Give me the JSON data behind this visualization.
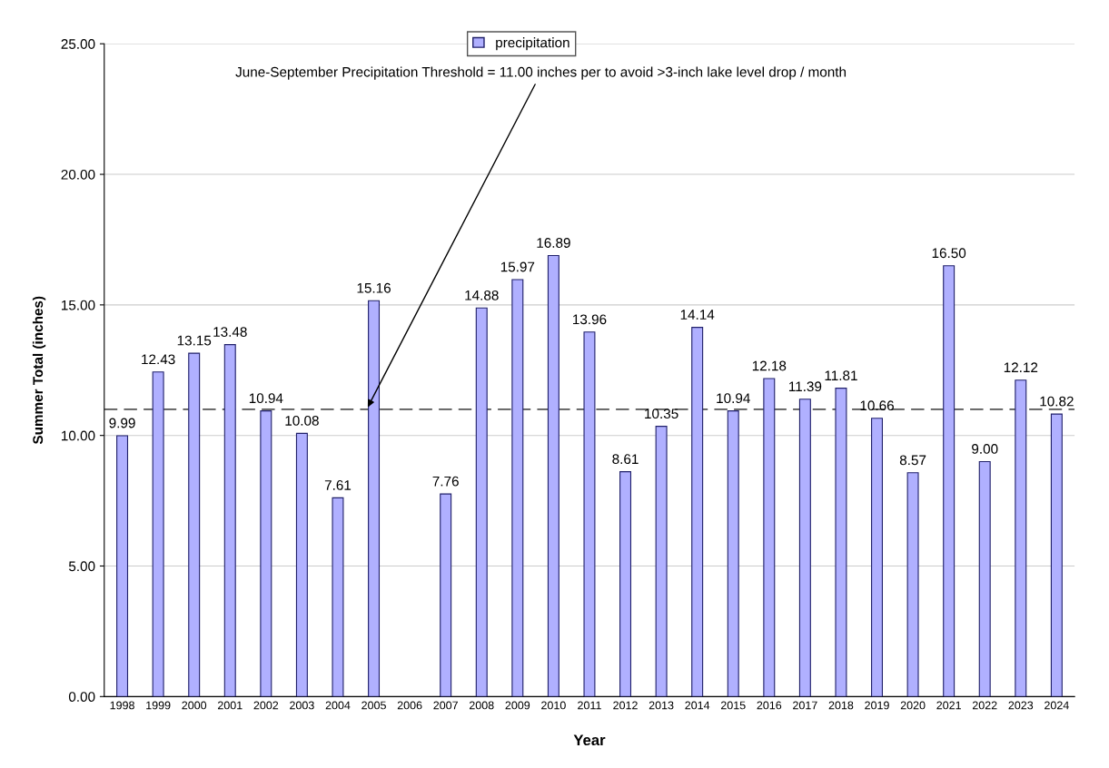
{
  "chart_data": {
    "type": "bar",
    "xlabel": "Year",
    "ylabel": "Summer Total (inches)",
    "categories": [
      "1998",
      "1999",
      "2000",
      "2001",
      "2002",
      "2003",
      "2004",
      "2005",
      "2006",
      "2007",
      "2008",
      "2009",
      "2010",
      "2011",
      "2012",
      "2013",
      "2014",
      "2015",
      "2016",
      "2017",
      "2018",
      "2019",
      "2020",
      "2021",
      "2022",
      "2023",
      "2024"
    ],
    "series": [
      {
        "name": "precipitation",
        "color": "#b0b0ff",
        "values": [
          9.99,
          12.43,
          13.15,
          13.48,
          10.94,
          10.08,
          7.61,
          15.16,
          null,
          7.76,
          14.88,
          15.97,
          16.89,
          13.96,
          8.61,
          10.35,
          14.14,
          10.94,
          12.18,
          11.39,
          11.81,
          10.66,
          8.57,
          16.5,
          9.0,
          12.12,
          10.82
        ],
        "value_labels": [
          "9.99",
          "12.43",
          "13.15",
          "13.48",
          "10.94",
          "10.08",
          "7.61",
          "15.16",
          null,
          "7.76",
          "14.88",
          "15.97",
          "16.89",
          "13.96",
          "8.61",
          "10.35",
          "14.14",
          "10.94",
          "12.18",
          "11.39",
          "11.81",
          "10.66",
          "8.57",
          "16.50",
          "9.00",
          "12.12",
          "10.82"
        ]
      }
    ],
    "ylim": [
      0,
      25
    ],
    "yticks": [
      {
        "value": 0,
        "label": "0.00"
      },
      {
        "value": 5,
        "label": "5.00"
      },
      {
        "value": 10,
        "label": "10.00"
      },
      {
        "value": 15,
        "label": "15.00"
      },
      {
        "value": 20,
        "label": "20.00"
      },
      {
        "value": 25,
        "label": "25.00"
      }
    ],
    "ref_lines": [
      {
        "axis": "y",
        "value": 11.0,
        "label": "June-September Precipitation Threshold = 11.00 inches per to avoid >3-inch lake level drop / month",
        "color": "#555555",
        "line_style": "dashed"
      }
    ],
    "grid": "y",
    "legend": "top"
  }
}
